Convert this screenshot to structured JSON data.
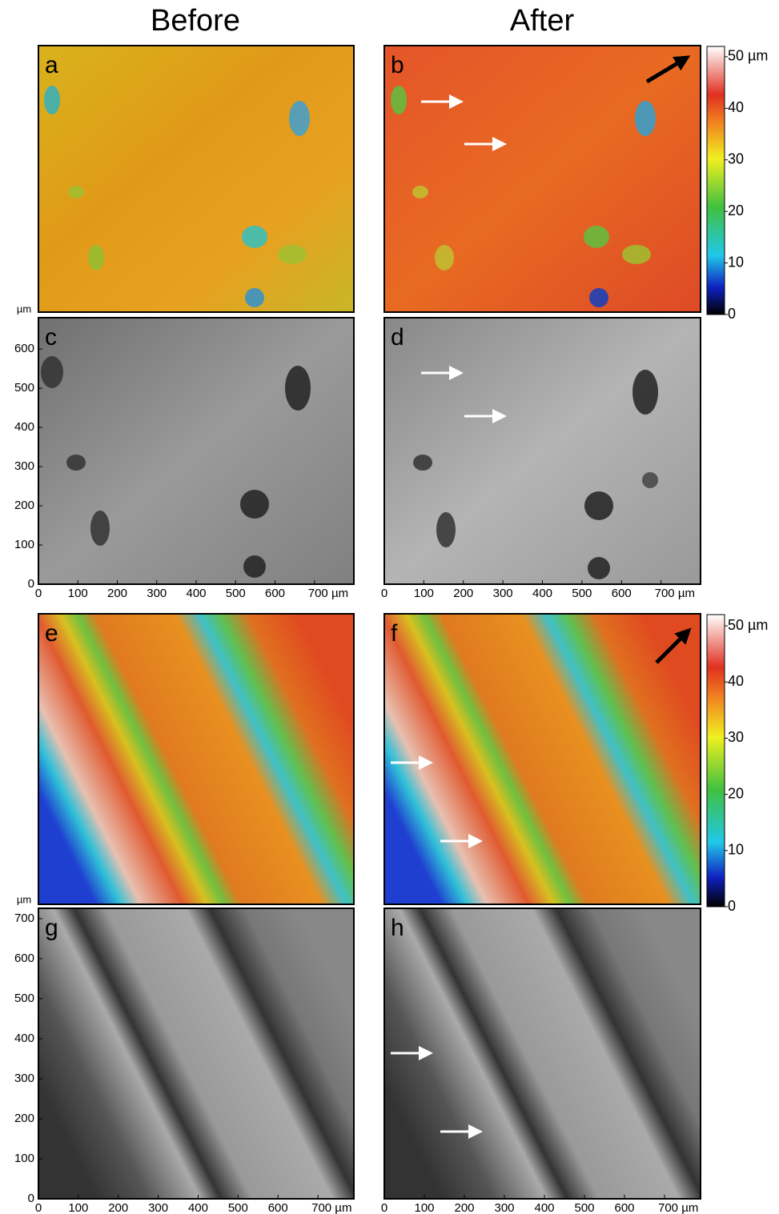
{
  "columns": [
    "Before",
    "After"
  ],
  "panels": [
    {
      "label": "a"
    },
    {
      "label": "b",
      "colorbar": {
        "lim": [
          0,
          52
        ],
        "ticks": [
          0,
          10,
          20,
          30,
          40,
          {
            "value": 50,
            "label": "50 µm"
          }
        ]
      }
    },
    {
      "label": "c",
      "unit": "µm",
      "xlim": [
        0,
        800
      ],
      "ylim": [
        0,
        680
      ],
      "yticks": [
        0,
        100,
        200,
        300,
        400,
        500,
        600
      ],
      "xticks": [
        0,
        100,
        200,
        300,
        400,
        500,
        600,
        {
          "value": 700,
          "label": "700 µm"
        }
      ]
    },
    {
      "label": "d",
      "xlim": [
        0,
        800
      ],
      "xticks": [
        0,
        100,
        200,
        300,
        400,
        500,
        600,
        {
          "value": 700,
          "label": "700 µm"
        }
      ]
    },
    {
      "label": "e"
    },
    {
      "label": "f",
      "colorbar": {
        "lim": [
          0,
          52
        ],
        "ticks": [
          0,
          10,
          20,
          30,
          40,
          {
            "value": 50,
            "label": "50 µm"
          }
        ]
      }
    },
    {
      "label": "g",
      "unit": "µm",
      "xlim": [
        0,
        790
      ],
      "ylim": [
        0,
        726
      ],
      "yticks": [
        0,
        100,
        200,
        300,
        400,
        500,
        600,
        700
      ],
      "xticks": [
        0,
        100,
        200,
        300,
        400,
        500,
        600,
        {
          "value": 700,
          "label": "700 µm"
        }
      ]
    },
    {
      "label": "h",
      "xlim": [
        0,
        790
      ],
      "xticks": [
        0,
        100,
        200,
        300,
        400,
        500,
        600,
        {
          "value": 700,
          "label": "700 µm"
        }
      ]
    }
  ]
}
